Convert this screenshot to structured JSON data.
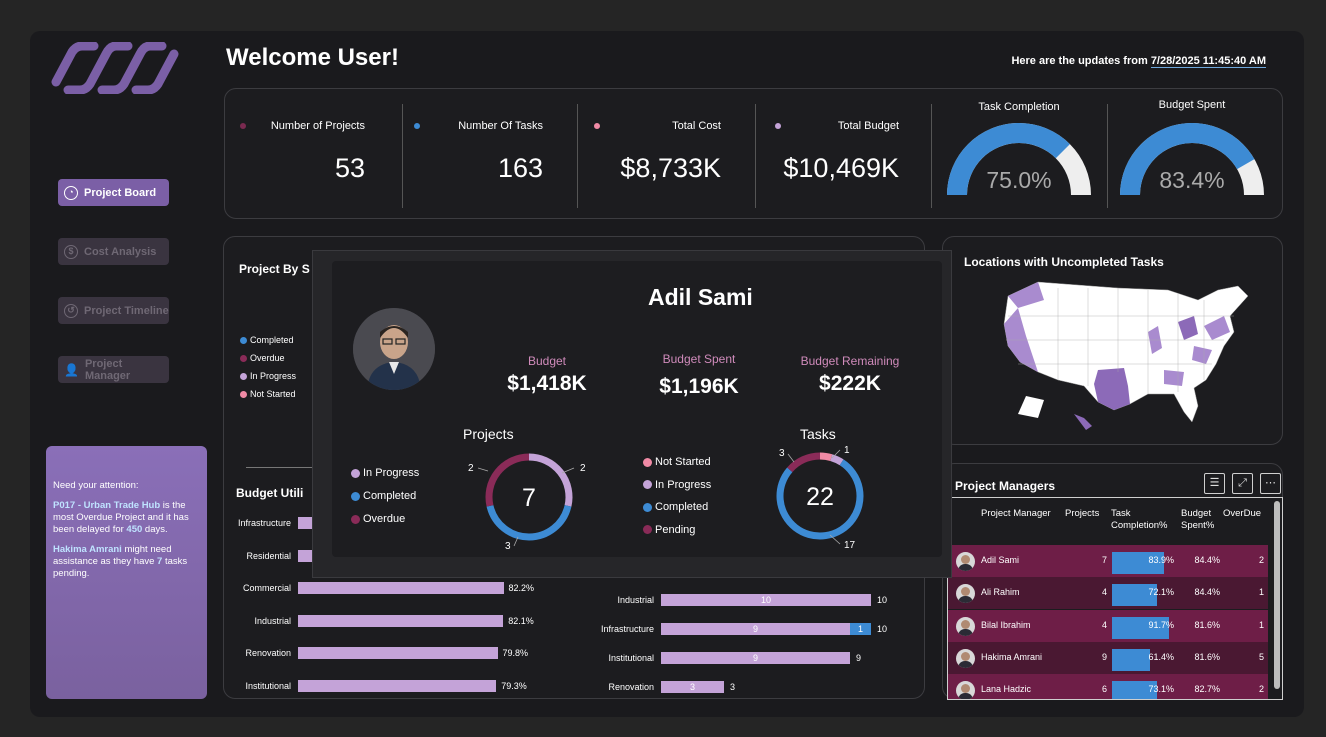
{
  "header": {
    "welcome": "Welcome User!",
    "updates_prefix": "Here are the updates from ",
    "updates_datetime": "7/28/2025 11:45:40 AM"
  },
  "nav": {
    "project_board": "Project Board",
    "cost_analysis": "Cost Analysis",
    "project_timeline": "Project Timeline",
    "project_manager": "Project Manager"
  },
  "attention": {
    "title": "Need your attention:",
    "project_name": "P017 - Urban Trade Hub",
    "project_text1": " is the most Overdue Project and it has been delayed for ",
    "delay_days": "450",
    "project_text2": " days.",
    "manager_name": "Hakima Amrani",
    "manager_text1": " might need assistance as they have ",
    "pending_tasks": "7",
    "manager_text2": " tasks pending."
  },
  "kpis": {
    "projects": {
      "label": "Number of Projects",
      "value": "53",
      "color": "#7a2a50"
    },
    "tasks": {
      "label": "Number Of Tasks",
      "value": "163",
      "color": "#3d8bd4"
    },
    "cost": {
      "label": "Total Cost",
      "value": "$8,733K",
      "color": "#f08aa5"
    },
    "budget": {
      "label": "Total Budget",
      "value": "$10,469K",
      "color": "#c4a3d8"
    }
  },
  "gauges": {
    "task_completion": {
      "title": "Task Completion",
      "value_text": "75.0%",
      "fraction": 0.75
    },
    "budget_spent": {
      "title": "Budget Spent",
      "value_text": "83.4%",
      "fraction": 0.834
    }
  },
  "project_by_status": {
    "title": "Project By S",
    "legend": [
      {
        "label": "Completed",
        "color": "#3d8bd4"
      },
      {
        "label": "Overdue",
        "color": "#8a2b58"
      },
      {
        "label": "In Progress",
        "color": "#c4a3d8"
      },
      {
        "label": "Not Started",
        "color": "#f08aa5"
      }
    ]
  },
  "budget_util": {
    "title": "Budget Utili",
    "rows": [
      {
        "label": "Infrastructure",
        "value": 0,
        "text": ""
      },
      {
        "label": "Residential",
        "value": 0,
        "text": ""
      },
      {
        "label": "Commercial",
        "value": 82.2,
        "text": "82.2%"
      },
      {
        "label": "Industrial",
        "value": 82.1,
        "text": "82.1%"
      },
      {
        "label": "Renovation",
        "value": 79.8,
        "text": "79.8%"
      },
      {
        "label": "Institutional",
        "value": 79.3,
        "text": "79.3%"
      }
    ]
  },
  "task_bars": {
    "rows": [
      {
        "label": "Industrial",
        "done": 10,
        "other": 0,
        "total": "10",
        "done_text": "10",
        "other_text": ""
      },
      {
        "label": "Infrastructure",
        "done": 9,
        "other": 1,
        "total": "10",
        "done_text": "9",
        "other_text": "1"
      },
      {
        "label": "Institutional",
        "done": 9,
        "other": 0,
        "total": "9",
        "done_text": "9",
        "other_text": ""
      },
      {
        "label": "Renovation",
        "done": 3,
        "other": 0,
        "total": "3",
        "done_text": "3",
        "other_text": ""
      }
    ]
  },
  "locations": {
    "title": "Locations with Uncompleted Tasks"
  },
  "tooltip": {
    "name": "Adil Sami",
    "budget_label": "Budget",
    "budget_value": "$1,418K",
    "spent_label": "Budget Spent",
    "spent_value": "$1,196K",
    "remaining_label": "Budget Remaining",
    "remaining_value": "$222K",
    "projects": {
      "title": "Projects",
      "center": "7",
      "legend": [
        {
          "label": "In Progress",
          "color": "#c4a3d8"
        },
        {
          "label": "Completed",
          "color": "#3d8bd4"
        },
        {
          "label": "Overdue",
          "color": "#8a2b58"
        }
      ],
      "segments": [
        {
          "label": "In Progress",
          "value": 2,
          "color": "#c4a3d8"
        },
        {
          "label": "Completed",
          "value": 3,
          "color": "#3d8bd4"
        },
        {
          "label": "Overdue",
          "value": 2,
          "color": "#8a2b58"
        }
      ],
      "labels": [
        "2",
        "3",
        "2"
      ]
    },
    "tasks": {
      "title": "Tasks",
      "center": "22",
      "legend": [
        {
          "label": "Not Started",
          "color": "#f08aa5"
        },
        {
          "label": "In Progress",
          "color": "#c4a3d8"
        },
        {
          "label": "Completed",
          "color": "#3d8bd4"
        },
        {
          "label": "Pending",
          "color": "#8a2b58"
        }
      ],
      "segments": [
        {
          "label": "Not Started",
          "value": 1,
          "color": "#f08aa5"
        },
        {
          "label": "In Progress",
          "value": 1,
          "color": "#c4a3d8"
        },
        {
          "label": "Completed",
          "value": 17,
          "color": "#3d8bd4"
        },
        {
          "label": "Pending",
          "value": 3,
          "color": "#8a2b58"
        }
      ],
      "labels": [
        "1",
        "17",
        "3"
      ]
    }
  },
  "project_managers": {
    "title": "Project Managers",
    "columns": [
      "Project Manager",
      "Projects",
      "Task Completion%",
      "Budget Spent%",
      "OverDue"
    ],
    "rows": [
      {
        "name": "Adil Sami",
        "projects": "7",
        "task_pct": "83.9%",
        "task_frac": 0.839,
        "budget_pct": "84.4%",
        "overdue": "2"
      },
      {
        "name": "Ali Rahim",
        "projects": "4",
        "task_pct": "72.1%",
        "task_frac": 0.721,
        "budget_pct": "84.4%",
        "overdue": "1"
      },
      {
        "name": "Bilal Ibrahim",
        "projects": "4",
        "task_pct": "91.7%",
        "task_frac": 0.917,
        "budget_pct": "81.6%",
        "overdue": "1"
      },
      {
        "name": "Hakima Amrani",
        "projects": "9",
        "task_pct": "61.4%",
        "task_frac": 0.614,
        "budget_pct": "81.6%",
        "overdue": "5"
      },
      {
        "name": "Lana Hadzic",
        "projects": "6",
        "task_pct": "73.1%",
        "task_frac": 0.731,
        "budget_pct": "82.7%",
        "overdue": "2"
      }
    ]
  },
  "colors": {
    "accent": "#7b5fa6",
    "blue": "#3d8bd4",
    "maroon": "#6e1e47",
    "lavender": "#c4a3d8",
    "pink": "#f08aa5"
  }
}
